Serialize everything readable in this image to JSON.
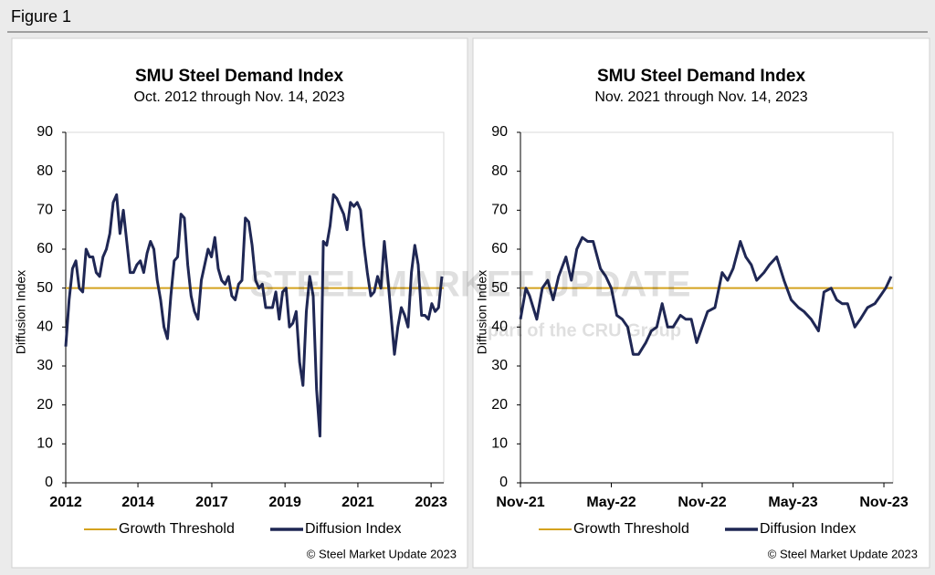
{
  "figure_label": "Figure 1",
  "watermark": [
    "STEEL MARKET UPDATE",
    "part of the CRU Group"
  ],
  "chart_data": [
    {
      "type": "line",
      "title": "SMU Steel Demand Index",
      "subtitle": "Oct. 2012 through Nov. 14, 2023",
      "ylabel": "Diffusion Index",
      "copyright": "© Steel Market Update 2023",
      "xlim": [
        2012.8,
        2023.9
      ],
      "ylim": [
        0,
        90
      ],
      "yticks": [
        0,
        10,
        20,
        30,
        40,
        50,
        60,
        70,
        80,
        90
      ],
      "xticks": [
        {
          "value": 2012.8,
          "label": "2012"
        },
        {
          "value": 2014.93,
          "label": "2014"
        },
        {
          "value": 2017.11,
          "label": "2017"
        },
        {
          "value": 2019.27,
          "label": "2019"
        },
        {
          "value": 2021.42,
          "label": "2021"
        },
        {
          "value": 2023.58,
          "label": "2023"
        }
      ],
      "series": [
        {
          "name": "Growth Threshold",
          "color": "#d4a21e",
          "value": 50
        },
        {
          "name": "Diffusion Index",
          "color": "#1f2754",
          "x": [
            2012.8,
            2012.9,
            2013.0,
            2013.1,
            2013.2,
            2013.3,
            2013.4,
            2013.5,
            2013.6,
            2013.7,
            2013.8,
            2013.9,
            2014.0,
            2014.1,
            2014.2,
            2014.3,
            2014.4,
            2014.5,
            2014.6,
            2014.7,
            2014.8,
            2014.9,
            2015.0,
            2015.1,
            2015.2,
            2015.3,
            2015.4,
            2015.5,
            2015.6,
            2015.7,
            2015.8,
            2015.9,
            2016.0,
            2016.1,
            2016.2,
            2016.3,
            2016.4,
            2016.5,
            2016.6,
            2016.7,
            2016.8,
            2016.9,
            2017.0,
            2017.1,
            2017.2,
            2017.3,
            2017.4,
            2017.5,
            2017.6,
            2017.7,
            2017.8,
            2017.9,
            2018.0,
            2018.1,
            2018.2,
            2018.3,
            2018.4,
            2018.5,
            2018.6,
            2018.7,
            2018.8,
            2018.9,
            2019.0,
            2019.1,
            2019.2,
            2019.3,
            2019.4,
            2019.5,
            2019.6,
            2019.7,
            2019.8,
            2019.9,
            2020.0,
            2020.1,
            2020.2,
            2020.3,
            2020.4,
            2020.5,
            2020.6,
            2020.7,
            2020.8,
            2020.9,
            2021.0,
            2021.1,
            2021.2,
            2021.3,
            2021.4,
            2021.5,
            2021.6,
            2021.7,
            2021.8,
            2021.9,
            2022.0,
            2022.1,
            2022.2,
            2022.3,
            2022.4,
            2022.5,
            2022.6,
            2022.7,
            2022.8,
            2022.9,
            2023.0,
            2023.1,
            2023.2,
            2023.3,
            2023.4,
            2023.5,
            2023.6,
            2023.7,
            2023.8,
            2023.9
          ],
          "values": [
            35,
            47,
            55,
            57,
            50,
            49,
            60,
            58,
            58,
            54,
            53,
            58,
            60,
            64,
            72,
            74,
            64,
            70,
            62,
            54,
            54,
            56,
            57,
            54,
            59,
            62,
            60,
            52,
            47,
            40,
            37,
            48,
            57,
            58,
            69,
            68,
            56,
            48,
            44,
            42,
            52,
            56,
            60,
            58,
            63,
            55,
            52,
            51,
            53,
            48,
            47,
            51,
            52,
            68,
            67,
            61,
            52,
            50,
            51,
            45,
            45,
            45,
            49,
            42,
            49,
            50,
            40,
            41,
            44,
            31,
            25,
            44,
            53,
            48,
            24,
            12,
            62,
            61,
            66,
            74,
            73,
            71,
            69,
            65,
            72,
            71,
            72,
            70,
            61,
            54,
            48,
            49,
            53,
            50,
            62,
            53,
            43,
            33,
            40,
            45,
            43,
            40,
            54,
            61,
            56,
            43,
            43,
            42,
            46,
            44,
            45,
            53
          ]
        }
      ]
    },
    {
      "type": "line",
      "title": "SMU Steel Demand Index",
      "subtitle": "Nov. 2021 through Nov. 14, 2023",
      "ylabel": "Diffusion Index",
      "copyright": "© Steel Market Update 2023",
      "xlim": [
        2021.83,
        2023.87
      ],
      "ylim": [
        0,
        90
      ],
      "yticks": [
        0,
        10,
        20,
        30,
        40,
        50,
        60,
        70,
        80,
        90
      ],
      "xticks": [
        {
          "value": 2021.83,
          "label": "Nov-21"
        },
        {
          "value": 2022.33,
          "label": "May-22"
        },
        {
          "value": 2022.83,
          "label": "Nov-22"
        },
        {
          "value": 2023.33,
          "label": "May-23"
        },
        {
          "value": 2023.83,
          "label": "Nov-23"
        }
      ],
      "series": [
        {
          "name": "Growth Threshold",
          "color": "#d4a21e",
          "value": 50
        },
        {
          "name": "Diffusion Index",
          "color": "#1f2754",
          "x": [
            2021.83,
            2021.86,
            2021.88,
            2021.92,
            2021.95,
            2021.98,
            2022.01,
            2022.04,
            2022.08,
            2022.11,
            2022.14,
            2022.17,
            2022.2,
            2022.23,
            2022.27,
            2022.3,
            2022.33,
            2022.36,
            2022.39,
            2022.42,
            2022.45,
            2022.48,
            2022.52,
            2022.55,
            2022.58,
            2022.61,
            2022.64,
            2022.67,
            2022.71,
            2022.74,
            2022.77,
            2022.8,
            2022.83,
            2022.86,
            2022.9,
            2022.94,
            2022.97,
            2023.0,
            2023.04,
            2023.07,
            2023.1,
            2023.13,
            2023.17,
            2023.2,
            2023.24,
            2023.28,
            2023.32,
            2023.36,
            2023.39,
            2023.43,
            2023.47,
            2023.5,
            2023.54,
            2023.57,
            2023.6,
            2023.63,
            2023.67,
            2023.7,
            2023.74,
            2023.78,
            2023.81,
            2023.84,
            2023.87
          ],
          "values": [
            42,
            50,
            48,
            42,
            50,
            52,
            47,
            53,
            58,
            52,
            60,
            63,
            62,
            62,
            55,
            53,
            50,
            43,
            42,
            40,
            33,
            33,
            36,
            39,
            40,
            46,
            40,
            40,
            43,
            42,
            42,
            36,
            40,
            44,
            45,
            54,
            52,
            55,
            62,
            58,
            56,
            52,
            54,
            56,
            58,
            52,
            47,
            45,
            44,
            42,
            39,
            49,
            50,
            47,
            46,
            46,
            40,
            42,
            45,
            46,
            48,
            50,
            53
          ]
        }
      ]
    }
  ]
}
